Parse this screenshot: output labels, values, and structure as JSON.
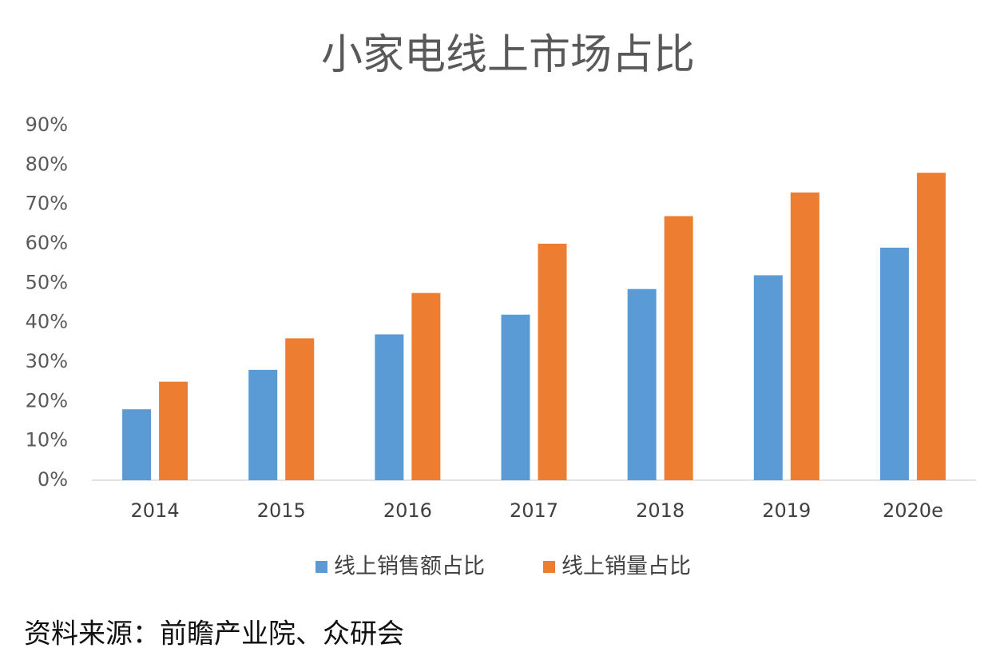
{
  "chart_data": {
    "type": "bar",
    "title": "小家电线上市场占比",
    "categories": [
      "2014",
      "2015",
      "2016",
      "2017",
      "2018",
      "2019",
      "2020e"
    ],
    "series": [
      {
        "name": "线上销售额占比",
        "color": "#5b9bd5",
        "values": [
          18,
          28,
          37,
          42,
          48.5,
          52,
          59
        ]
      },
      {
        "name": "线上销量占比",
        "color": "#ed7d31",
        "values": [
          25,
          36,
          47.5,
          60,
          67,
          73,
          78
        ]
      }
    ],
    "ylim": [
      0,
      90
    ],
    "yticks": [
      {
        "value": 0,
        "label": "0%"
      },
      {
        "value": 10,
        "label": "10%"
      },
      {
        "value": 20,
        "label": "20%"
      },
      {
        "value": 30,
        "label": "30%"
      },
      {
        "value": 40,
        "label": "40%"
      },
      {
        "value": 50,
        "label": "50%"
      },
      {
        "value": 60,
        "label": "60%"
      },
      {
        "value": 70,
        "label": "70%"
      },
      {
        "value": 80,
        "label": "80%"
      },
      {
        "value": 90,
        "label": "90%"
      }
    ],
    "grid": false,
    "legend": "bottom",
    "source": "资料来源：前瞻产业院、众研会"
  }
}
